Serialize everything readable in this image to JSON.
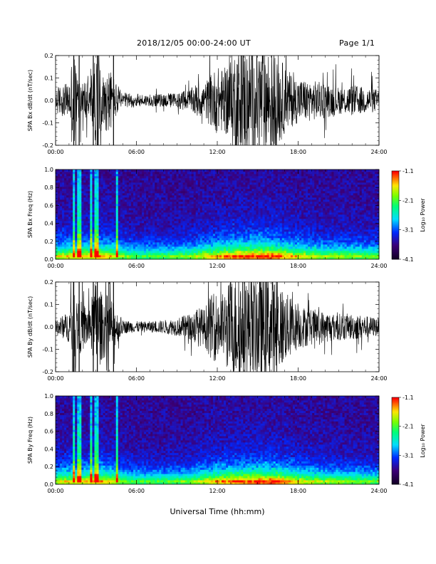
{
  "header": {
    "title": "2018/12/05  00:00-24:00 UT",
    "page": "Page 1/1"
  },
  "footer": {
    "xlabel": "Universal Time (hh:mm)"
  },
  "chart_data": [
    {
      "type": "line",
      "ylabel": "SPA Bx dB/dt (nT/sec)",
      "xlim": [
        0,
        24
      ],
      "ylim": [
        -0.2,
        0.2
      ],
      "x_ticks": [
        "00:00",
        "06:00",
        "12:00",
        "18:00",
        "24:00"
      ],
      "y_ticks": [
        "0.2",
        "0.1",
        "0.0",
        "-0.1",
        "-0.2"
      ],
      "envelope": {
        "x_hours": [
          0,
          0.5,
          1,
          1.3,
          1.6,
          2,
          2.5,
          3,
          3.5,
          4,
          4.5,
          5,
          6,
          7,
          8,
          9,
          10,
          10.5,
          11,
          11.5,
          12,
          12.5,
          13,
          13.5,
          14,
          14.5,
          15,
          15.5,
          16,
          16.5,
          17,
          17.5,
          18,
          19,
          20,
          21,
          22,
          23,
          24
        ],
        "amplitude": [
          0.06,
          0.07,
          0.08,
          0.25,
          0.12,
          0.1,
          0.08,
          0.2,
          0.12,
          0.15,
          0.08,
          0.035,
          0.03,
          0.025,
          0.03,
          0.035,
          0.05,
          0.08,
          0.07,
          0.12,
          0.15,
          0.14,
          0.2,
          0.25,
          0.25,
          0.23,
          0.25,
          0.23,
          0.25,
          0.22,
          0.15,
          0.12,
          0.1,
          0.09,
          0.08,
          0.06,
          0.07,
          0.06,
          0.05
        ]
      }
    },
    {
      "type": "heatmap",
      "ylabel": "SPA Bx Freq (Hz)",
      "xlim": [
        0,
        24
      ],
      "ylim": [
        0,
        1.0
      ],
      "x_ticks": [
        "00:00",
        "06:00",
        "12:00",
        "18:00",
        "24:00"
      ],
      "y_ticks": [
        "1.0",
        "0.8",
        "0.6",
        "0.4",
        "0.2",
        "0.0"
      ],
      "colorbar": {
        "label": "Log₁₀ Power",
        "range": [
          -4.1,
          -1.1
        ],
        "ticks": [
          "-1.1",
          "-2.1",
          "-3.1",
          "-4.1"
        ]
      },
      "activity_hours": [
        0,
        1,
        2,
        3,
        4,
        5,
        6,
        8,
        10,
        11,
        12,
        13,
        14,
        15,
        16,
        17,
        18,
        20,
        22,
        24
      ],
      "activity_level": [
        0.45,
        0.5,
        0.5,
        0.6,
        0.55,
        0.3,
        0.2,
        0.2,
        0.3,
        0.45,
        0.6,
        0.7,
        0.75,
        0.8,
        0.8,
        0.65,
        0.5,
        0.35,
        0.3,
        0.25
      ],
      "vertical_streaks_hours": [
        1.35,
        1.75,
        2.7,
        2.95,
        3.1,
        4.5
      ]
    },
    {
      "type": "line",
      "ylabel": "SPA By dB/dt (nT/sec)",
      "xlim": [
        0,
        24
      ],
      "ylim": [
        -0.2,
        0.2
      ],
      "x_ticks": [
        "00:00",
        "06:00",
        "12:00",
        "18:00",
        "24:00"
      ],
      "y_ticks": [
        "0.2",
        "0.1",
        "0.0",
        "-0.1",
        "-0.2"
      ],
      "envelope": {
        "x_hours": [
          0,
          0.5,
          1,
          1.3,
          1.6,
          2,
          2.5,
          3,
          3.5,
          4,
          4.5,
          5,
          6,
          7,
          8,
          9,
          10,
          10.5,
          11,
          11.5,
          12,
          12.5,
          13,
          13.5,
          14,
          14.5,
          15,
          15.5,
          16,
          16.5,
          17,
          17.5,
          18,
          19,
          20,
          21,
          22,
          23,
          24
        ],
        "amplitude": [
          0.04,
          0.05,
          0.07,
          0.25,
          0.13,
          0.11,
          0.09,
          0.22,
          0.14,
          0.15,
          0.08,
          0.03,
          0.025,
          0.025,
          0.03,
          0.04,
          0.06,
          0.09,
          0.08,
          0.14,
          0.16,
          0.15,
          0.22,
          0.25,
          0.25,
          0.24,
          0.25,
          0.24,
          0.25,
          0.22,
          0.16,
          0.13,
          0.1,
          0.08,
          0.07,
          0.06,
          0.06,
          0.05,
          0.04
        ]
      }
    },
    {
      "type": "heatmap",
      "ylabel": "SPA By Freq (Hz)",
      "xlim": [
        0,
        24
      ],
      "ylim": [
        0,
        1.0
      ],
      "x_ticks": [
        "00:00",
        "06:00",
        "12:00",
        "18:00",
        "24:00"
      ],
      "y_ticks": [
        "1.0",
        "0.8",
        "0.6",
        "0.4",
        "0.2",
        "0.0"
      ],
      "colorbar": {
        "label": "Log₁₀ Power",
        "range": [
          -4.1,
          -1.1
        ],
        "ticks": [
          "-1.1",
          "-2.1",
          "-3.1",
          "-4.1"
        ]
      },
      "activity_hours": [
        0,
        1,
        2,
        3,
        4,
        5,
        6,
        8,
        10,
        11,
        12,
        13,
        14,
        15,
        16,
        17,
        18,
        20,
        22,
        24
      ],
      "activity_level": [
        0.4,
        0.5,
        0.5,
        0.6,
        0.55,
        0.3,
        0.2,
        0.2,
        0.3,
        0.45,
        0.6,
        0.7,
        0.75,
        0.8,
        0.8,
        0.65,
        0.5,
        0.35,
        0.3,
        0.25
      ],
      "vertical_streaks_hours": [
        1.35,
        1.75,
        2.7,
        2.95,
        3.1,
        4.5
      ]
    }
  ]
}
